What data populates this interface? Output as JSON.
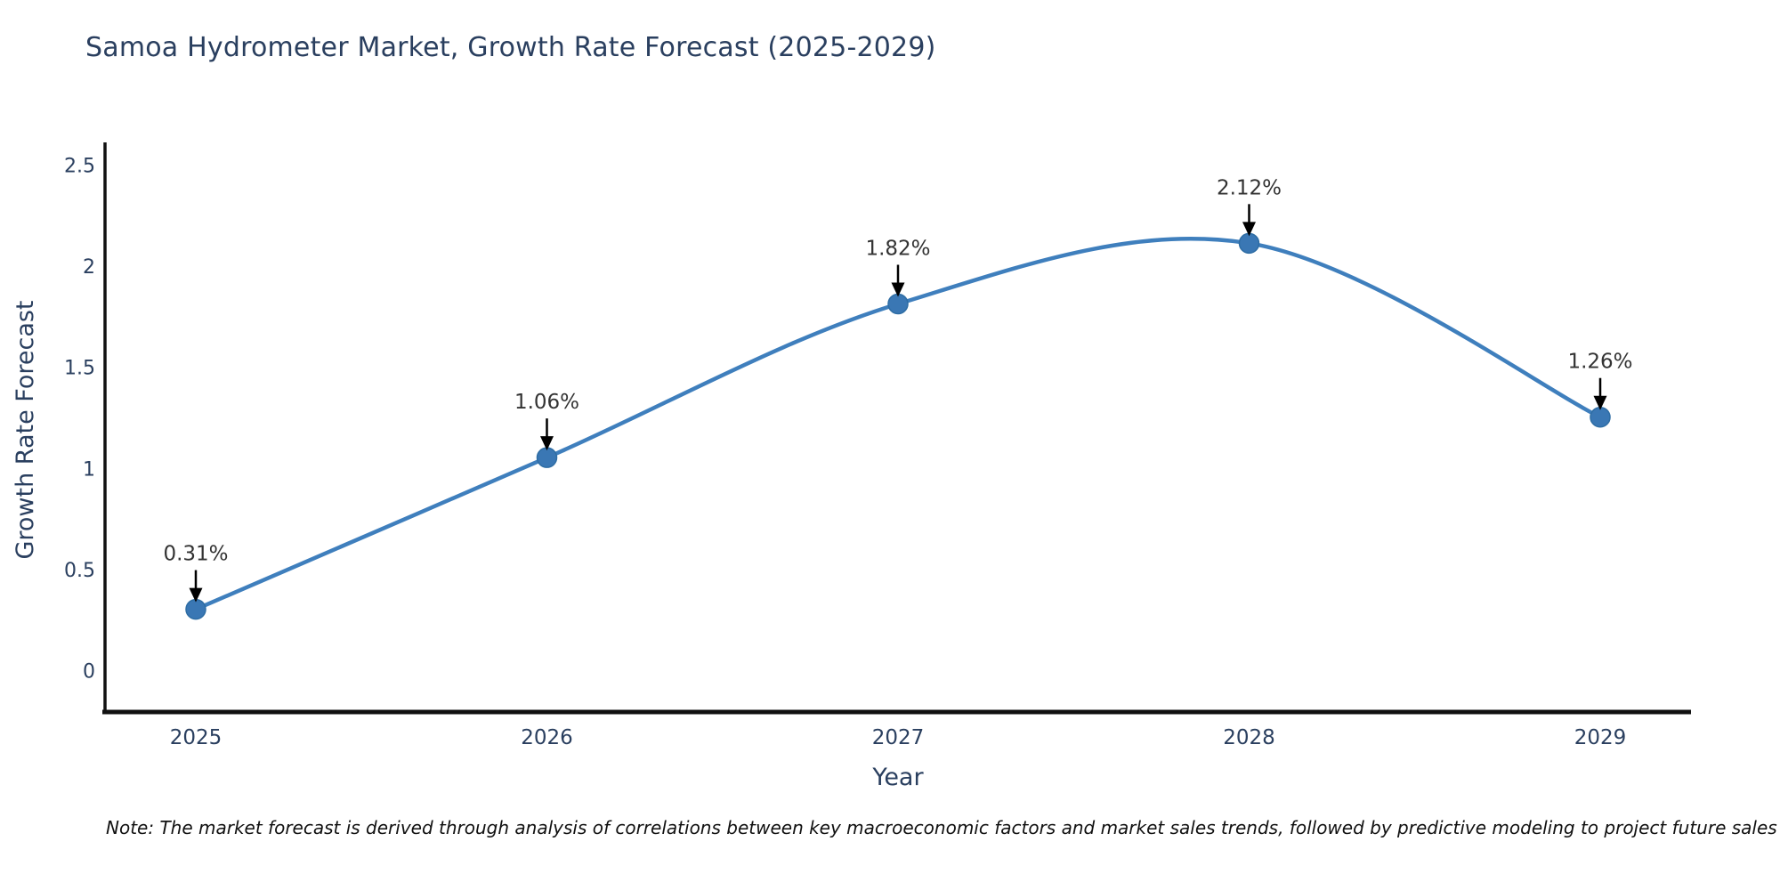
{
  "title": "Samoa Hydrometer Market, Growth Rate Forecast (2025-2029)",
  "note": "Note: The market forecast is derived through analysis of correlations between key macroeconomic factors and market sales trends, followed by predictive modeling to project future sales",
  "chart_data": {
    "type": "line",
    "title": "Samoa Hydrometer Market, Growth Rate Forecast (2025-2029)",
    "xlabel": "Year",
    "ylabel": "Growth Rate Forecast",
    "x": [
      2025,
      2026,
      2027,
      2028,
      2029
    ],
    "values": [
      0.31,
      1.06,
      1.82,
      2.12,
      1.26
    ],
    "point_labels": [
      "0.31%",
      "1.06%",
      "1.82%",
      "2.12%",
      "1.26%"
    ],
    "x_tick_labels": [
      "2025",
      "2026",
      "2027",
      "2028",
      "2029"
    ],
    "y_ticks": [
      0,
      0.5,
      1,
      1.5,
      2,
      2.5
    ],
    "y_tick_labels": [
      "0",
      "0.5",
      "1",
      "1.5",
      "2",
      "2.5"
    ],
    "ylim": [
      -0.2,
      2.62
    ],
    "grid": false,
    "legend": "none",
    "line_shape": "spline",
    "annotation_style": "down-arrow",
    "colors": {
      "line": "#3f7fbd",
      "marker": "#3a77b4",
      "marker_edge": "#2e6da4",
      "axis": "#111111",
      "title_text": "#2a3f5f",
      "tick_text": "#2a3f5f",
      "annotation_text": "#333333",
      "arrow": "#000000",
      "background": "#ffffff"
    }
  }
}
